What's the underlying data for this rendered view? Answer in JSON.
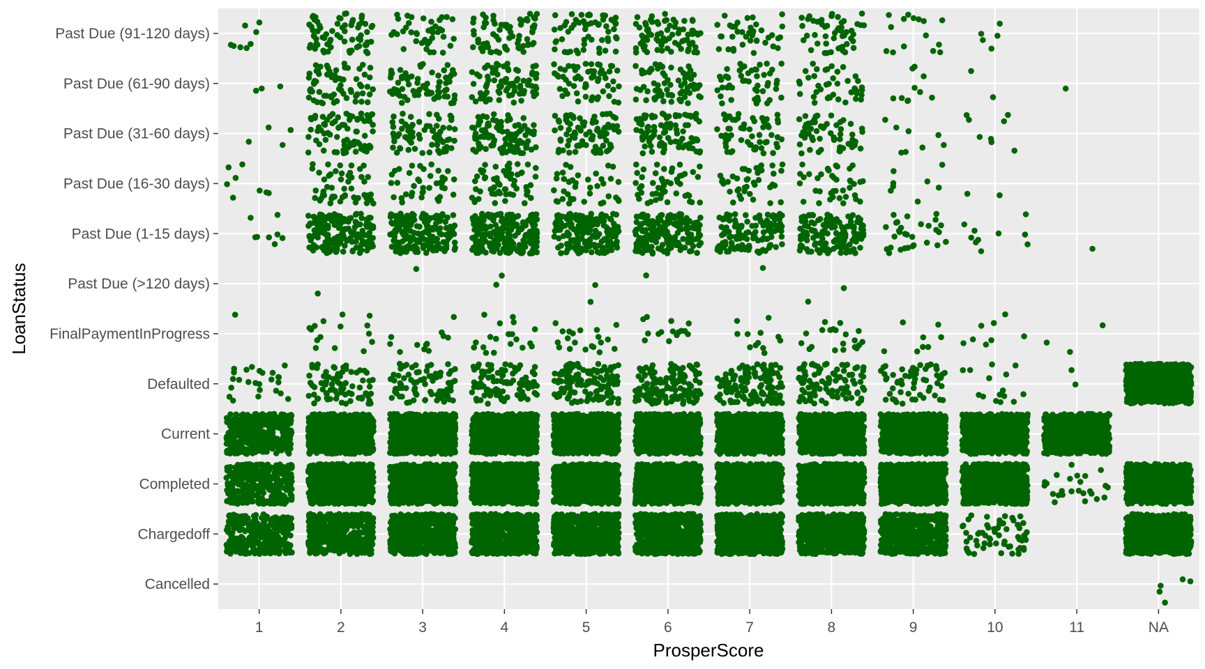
{
  "chart_data": {
    "type": "scatter",
    "subtype": "jittered categorical scatter",
    "title": "",
    "xlabel": "ProsperScore",
    "ylabel": "LoanStatus",
    "x_categories": [
      "1",
      "2",
      "3",
      "4",
      "5",
      "6",
      "7",
      "8",
      "9",
      "10",
      "11",
      "NA"
    ],
    "y_categories": [
      "Cancelled",
      "Chargedoff",
      "Completed",
      "Current",
      "Defaulted",
      "FinalPaymentInProgress",
      "Past Due (>120 days)",
      "Past Due (1-15 days)",
      "Past Due (16-30 days)",
      "Past Due (31-60 days)",
      "Past Due (61-90 days)",
      "Past Due (91-120 days)"
    ],
    "point_color": "#006400",
    "panel_background": "#ebebeb",
    "grid_color": "#ffffff",
    "grid": true,
    "legend": "none",
    "approx_point_density": [
      {
        "status": "Cancelled",
        "counts": [
          0,
          0,
          0,
          0,
          0,
          0,
          0,
          0,
          0,
          0,
          0,
          5
        ]
      },
      {
        "status": "Chargedoff",
        "counts": [
          300,
          450,
          600,
          800,
          800,
          800,
          800,
          800,
          500,
          60,
          0,
          2000
        ]
      },
      {
        "status": "Completed",
        "counts": [
          350,
          1400,
          1500,
          1500,
          1500,
          1500,
          1500,
          1500,
          1400,
          900,
          25,
          2000
        ]
      },
      {
        "status": "Current",
        "counts": [
          450,
          2000,
          2000,
          2000,
          2000,
          2000,
          2000,
          2000,
          2000,
          2000,
          1200,
          0
        ]
      },
      {
        "status": "Defaulted",
        "counts": [
          25,
          80,
          80,
          100,
          130,
          140,
          130,
          100,
          60,
          15,
          2,
          1000
        ]
      },
      {
        "status": "FinalPaymentInProgress",
        "counts": [
          1,
          15,
          12,
          20,
          20,
          15,
          12,
          20,
          8,
          8,
          3,
          0
        ]
      },
      {
        "status": "Past Due (>120 days)",
        "counts": [
          0,
          1,
          1,
          2,
          2,
          1,
          1,
          2,
          0,
          0,
          0,
          0
        ]
      },
      {
        "status": "Past Due (1-15 days)",
        "counts": [
          8,
          180,
          180,
          220,
          180,
          200,
          120,
          140,
          30,
          10,
          1,
          0
        ]
      },
      {
        "status": "Past Due (16-30 days)",
        "counts": [
          8,
          50,
          40,
          60,
          40,
          50,
          40,
          40,
          8,
          2,
          0,
          0
        ]
      },
      {
        "status": "Past Due (31-60 days)",
        "counts": [
          4,
          80,
          70,
          100,
          90,
          90,
          60,
          60,
          8,
          8,
          0,
          0
        ]
      },
      {
        "status": "Past Due (61-90 days)",
        "counts": [
          3,
          70,
          70,
          80,
          60,
          70,
          50,
          40,
          10,
          2,
          1,
          0
        ]
      },
      {
        "status": "Past Due (91-120 days)",
        "counts": [
          8,
          70,
          40,
          70,
          60,
          80,
          40,
          50,
          15,
          5,
          0,
          0
        ]
      }
    ]
  }
}
